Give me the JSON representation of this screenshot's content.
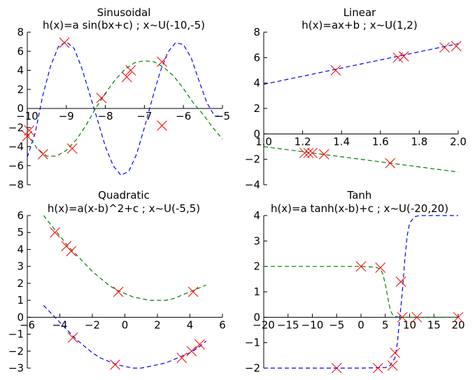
{
  "chart_data": [
    {
      "type": "line",
      "title": "Sinusoidal",
      "subtitle": "h(x)=a sin(bx+c) ; x~U(-10,-5)",
      "xlim": [
        -10,
        -5
      ],
      "ylim": [
        -8,
        8
      ],
      "xticks": [
        "−10",
        "−9",
        "−8",
        "−7",
        "−6",
        "−5"
      ],
      "yticks": [
        "8",
        "6",
        "4",
        "2",
        "0",
        "−2",
        "−4",
        "−6",
        "−8"
      ],
      "series": [
        {
          "style": "dashed",
          "color": "#0000ff",
          "x": [
            -10.0,
            -9.8,
            -9.6,
            -9.4,
            -9.2,
            -9.0,
            -8.8,
            -8.6,
            -8.4,
            -8.2,
            -8.0,
            -7.8,
            -7.6,
            -7.4,
            -7.2,
            -7.0,
            -6.8,
            -6.6,
            -6.4,
            -6.2,
            -6.0,
            -5.8,
            -5.6,
            -5.4,
            -5.2,
            -5.0
          ],
          "y": [
            -5.1,
            -2.6,
            1.4,
            4.5,
            6.5,
            7.0,
            6.3,
            4.2,
            1.5,
            -1.2,
            -4.0,
            -6.0,
            -7.0,
            -6.6,
            -4.8,
            -2.0,
            1.0,
            3.8,
            5.9,
            6.9,
            6.7,
            5.3,
            2.9,
            0.6,
            -0.8,
            -0.8
          ]
        },
        {
          "style": "dashed",
          "color": "#008000",
          "x": [
            -10.0,
            -9.75,
            -9.5,
            -9.25,
            -9.0,
            -8.75,
            -8.5,
            -8.25,
            -8.0,
            -7.75,
            -7.5,
            -7.25,
            -7.0,
            -6.75,
            -6.5,
            -6.25,
            -6.0,
            -5.75,
            -5.5,
            -5.25,
            -5.0
          ],
          "y": [
            -2.6,
            -4.2,
            -5.0,
            -5.0,
            -4.4,
            -3.3,
            -1.8,
            0.0,
            1.6,
            3.0,
            4.1,
            4.8,
            5.0,
            4.9,
            4.3,
            3.4,
            2.1,
            0.6,
            -0.6,
            -2.0,
            -3.2
          ]
        },
        {
          "style": "markers",
          "color": "#ff0000",
          "x": [
            -10.0,
            -9.95,
            -9.6,
            -9.05,
            -8.85,
            -8.1,
            -7.45,
            -7.35,
            -6.55,
            -6.55
          ],
          "y": [
            -2.9,
            -2.3,
            -4.8,
            6.9,
            -4.2,
            1.1,
            3.3,
            4.0,
            4.9,
            -1.8
          ]
        }
      ]
    },
    {
      "type": "line",
      "title": "Linear",
      "subtitle": "h(x)=ax+b ; x~U(1,2)",
      "xlim": [
        1.0,
        2.0
      ],
      "ylim": [
        -4,
        8
      ],
      "xticks": [
        "1.0",
        "1.2",
        "1.4",
        "1.6",
        "1.8",
        "2.0"
      ],
      "yticks": [
        "8",
        "6",
        "4",
        "2",
        "0",
        "−2",
        "−4"
      ],
      "series": [
        {
          "style": "dashed",
          "color": "#0000ff",
          "x": [
            1.0,
            2.0
          ],
          "y": [
            3.9,
            7.1
          ]
        },
        {
          "style": "dashed",
          "color": "#008000",
          "x": [
            1.0,
            2.0
          ],
          "y": [
            -1.0,
            -3.0
          ]
        },
        {
          "style": "markers",
          "color": "#ff0000",
          "x": [
            1.37,
            1.69,
            1.72,
            1.93,
            1.99,
            1.21,
            1.23,
            1.25,
            1.31,
            1.65
          ],
          "y": [
            5.0,
            6.0,
            6.1,
            6.8,
            6.9,
            -1.5,
            -1.5,
            -1.5,
            -1.6,
            -2.3
          ]
        }
      ]
    },
    {
      "type": "line",
      "title": "Quadratic",
      "subtitle": "h(x)=a(x-b)^2+c ; x~U(-5,5)",
      "xlim": [
        -6,
        6
      ],
      "ylim": [
        -3,
        6
      ],
      "xticks": [
        "−6",
        "−4",
        "−2",
        "0",
        "2",
        "4",
        "6"
      ],
      "yticks": [
        "6",
        "5",
        "4",
        "3",
        "2",
        "1",
        "0",
        "−1",
        "−2",
        "−3"
      ],
      "series": [
        {
          "style": "dashed",
          "color": "#008000",
          "x": [
            -5.0,
            -4.5,
            -4.0,
            -3.5,
            -3.0,
            -2.5,
            -2.0,
            -1.5,
            -1.0,
            -0.5,
            0.0,
            0.5,
            1.0,
            1.5,
            2.0,
            2.5,
            3.0,
            3.5,
            4.0,
            4.5,
            5.0
          ],
          "y": [
            6.0,
            5.4,
            4.8,
            4.2,
            3.7,
            3.2,
            2.7,
            2.3,
            1.9,
            1.6,
            1.4,
            1.2,
            1.1,
            1.0,
            1.0,
            1.0,
            1.1,
            1.3,
            1.5,
            1.7,
            1.9
          ]
        },
        {
          "style": "dashed",
          "color": "#0000ff",
          "x": [
            -5.0,
            -4.5,
            -4.0,
            -3.5,
            -3.0,
            -2.5,
            -2.0,
            -1.5,
            -1.0,
            -0.5,
            0.0,
            0.5,
            1.0,
            1.5,
            2.0,
            2.5,
            3.0,
            3.5,
            4.0,
            4.5,
            5.0
          ],
          "y": [
            0.7,
            0.2,
            -0.3,
            -0.8,
            -1.3,
            -1.7,
            -2.1,
            -2.4,
            -2.6,
            -2.8,
            -2.9,
            -3.0,
            -3.0,
            -2.9,
            -2.8,
            -2.7,
            -2.5,
            -2.3,
            -2.1,
            -1.8,
            -1.4
          ]
        },
        {
          "style": "markers",
          "color": "#ff0000",
          "x": [
            -4.3,
            -3.6,
            -3.3,
            -0.4,
            4.2,
            -3.2,
            -0.6,
            3.5,
            4.1,
            4.6
          ],
          "y": [
            5.0,
            4.2,
            3.9,
            1.5,
            1.5,
            -1.2,
            -2.8,
            -2.4,
            -2.0,
            -1.6
          ]
        }
      ]
    },
    {
      "type": "line",
      "title": "Tanh",
      "subtitle": "h(x)=a tanh(x-b)+c ; x~U(-20,20)",
      "xlim": [
        -20,
        20
      ],
      "ylim": [
        -2,
        4
      ],
      "xticks": [
        "−20",
        "−15",
        "−10",
        "−5",
        "0",
        "5",
        "10",
        "15",
        "20"
      ],
      "yticks": [
        "4",
        "3",
        "2",
        "1",
        "0",
        "−1",
        "−2"
      ],
      "series": [
        {
          "style": "dashed",
          "color": "#008000",
          "x": [
            -20,
            -10,
            0,
            3.0,
            4.0,
            4.5,
            5.0,
            5.5,
            6.0,
            6.5,
            7.0,
            8.0,
            10,
            20
          ],
          "y": [
            2.0,
            2.0,
            2.0,
            1.97,
            1.9,
            1.7,
            1.3,
            0.8,
            0.3,
            0.1,
            0.03,
            0.0,
            0.0,
            0.0
          ]
        },
        {
          "style": "dashed",
          "color": "#0000ff",
          "x": [
            -20,
            -10,
            0,
            5.0,
            6.0,
            7.0,
            7.5,
            8.0,
            8.5,
            9.0,
            9.5,
            10.0,
            11.0,
            12.0,
            20
          ],
          "y": [
            -2.0,
            -2.0,
            -2.0,
            -1.98,
            -1.9,
            -1.6,
            -1.0,
            0.0,
            1.0,
            2.2,
            3.2,
            3.7,
            3.95,
            4.0,
            4.0
          ]
        },
        {
          "style": "markers",
          "color": "#ff0000",
          "x": [
            0.0,
            4.0,
            8.2,
            8.5,
            11.5,
            20.0,
            -5.0,
            3.5,
            6.5,
            7.0
          ],
          "y": [
            2.0,
            1.95,
            1.4,
            0.0,
            0.0,
            0.0,
            -2.0,
            -2.0,
            -1.9,
            -1.4
          ]
        }
      ]
    }
  ]
}
